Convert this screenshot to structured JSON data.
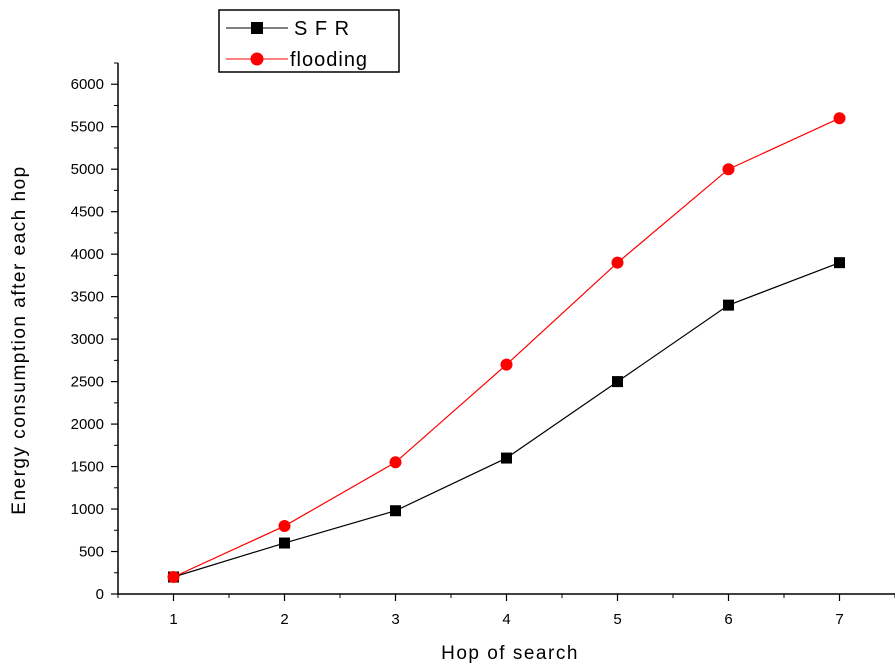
{
  "chart_data": {
    "type": "line",
    "xlabel": "Hop of search",
    "ylabel": "Energy consumption after each hop",
    "x": [
      1,
      2,
      3,
      4,
      5,
      6,
      7
    ],
    "xlim": [
      0.5,
      7.5
    ],
    "ylim": [
      0,
      6250
    ],
    "xticks": [
      1,
      2,
      3,
      4,
      5,
      6,
      7
    ],
    "yticks": [
      0,
      500,
      1000,
      1500,
      2000,
      2500,
      3000,
      3500,
      4000,
      4500,
      5000,
      5500,
      6000
    ],
    "grid": false,
    "legend_position": "top-left",
    "series": [
      {
        "name": "S F R",
        "color": "#000000",
        "marker": "square",
        "values": [
          200,
          600,
          980,
          1600,
          2500,
          3400,
          3900
        ]
      },
      {
        "name": "flooding",
        "color": "#ff0000",
        "marker": "circle",
        "values": [
          200,
          800,
          1550,
          2700,
          3900,
          5000,
          5600
        ]
      }
    ]
  }
}
